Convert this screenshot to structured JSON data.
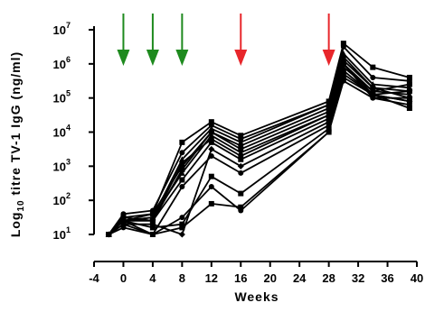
{
  "chart_data": {
    "type": "line",
    "title": "",
    "xlabel": "Weeks",
    "ylabel": "Log10 titre TV-1 IgG (ng/ml)",
    "ylabel_parts": {
      "prefix": "Log",
      "subscript": "10",
      "rest": " titre TV-1 IgG (ng/ml)"
    },
    "xlim": [
      -4,
      40
    ],
    "ylim_log10": [
      1,
      7
    ],
    "y_scale": "log10",
    "x_ticks": [
      -4,
      0,
      4,
      8,
      12,
      16,
      20,
      24,
      28,
      32,
      36,
      40
    ],
    "x_tick_labels": [
      "-4",
      "0",
      "4",
      "8",
      "12",
      "16",
      "20",
      "24",
      "28",
      "32",
      "36",
      "40"
    ],
    "y_tick_exponents": [
      1,
      2,
      3,
      4,
      5,
      6,
      7
    ],
    "y_tick_labels": [
      {
        "base": "10",
        "exp": "1"
      },
      {
        "base": "10",
        "exp": "2"
      },
      {
        "base": "10",
        "exp": "3"
      },
      {
        "base": "10",
        "exp": "4"
      },
      {
        "base": "10",
        "exp": "5"
      },
      {
        "base": "10",
        "exp": "6"
      },
      {
        "base": "10",
        "exp": "7"
      }
    ],
    "grid": false,
    "legend": "none",
    "line_color": "#000000",
    "vaccination_arrows": [
      {
        "week": 0,
        "color": "#1e8a1e"
      },
      {
        "week": 4,
        "color": "#1e8a1e"
      },
      {
        "week": 8,
        "color": "#1e8a1e"
      },
      {
        "week": 16,
        "color": "#e8262b"
      },
      {
        "week": 28,
        "color": "#e8262b"
      }
    ],
    "x": [
      -2,
      0,
      4,
      8,
      12,
      16,
      28,
      30,
      34,
      39
    ],
    "series": [
      {
        "marker": "square",
        "values": [
          1.0,
          1.5,
          1.6,
          3.7,
          4.3,
          3.9,
          4.9,
          6.6,
          5.9,
          5.6
        ]
      },
      {
        "marker": "circle",
        "values": [
          1.0,
          1.6,
          1.7,
          3.4,
          4.2,
          3.8,
          4.8,
          6.5,
          5.6,
          5.5
        ]
      },
      {
        "marker": "triangle",
        "values": [
          1.0,
          1.4,
          1.5,
          3.2,
          4.1,
          3.7,
          4.8,
          6.3,
          5.4,
          5.3
        ]
      },
      {
        "marker": "circle",
        "values": [
          1.0,
          1.4,
          1.6,
          3.0,
          4.0,
          3.6,
          4.7,
          6.2,
          5.3,
          5.2
        ]
      },
      {
        "marker": "square",
        "values": [
          1.0,
          1.5,
          1.4,
          2.9,
          4.0,
          3.5,
          4.6,
          6.0,
          5.2,
          5.4
        ]
      },
      {
        "marker": "triangle",
        "values": [
          1.0,
          1.4,
          1.5,
          2.8,
          3.9,
          3.4,
          4.5,
          5.9,
          5.2,
          5.1
        ]
      },
      {
        "marker": "circle",
        "values": [
          1.0,
          1.5,
          1.4,
          3.1,
          3.8,
          3.3,
          4.5,
          6.1,
          5.3,
          5.0
        ]
      },
      {
        "marker": "square",
        "values": [
          1.0,
          1.4,
          1.4,
          2.6,
          3.7,
          3.2,
          4.4,
          5.8,
          5.1,
          5.2
        ]
      },
      {
        "marker": "diamond",
        "values": [
          1.0,
          1.3,
          1.3,
          1.0,
          3.5,
          3.0,
          4.3,
          5.7,
          5.1,
          4.9
        ]
      },
      {
        "marker": "circle",
        "values": [
          1.0,
          1.2,
          1.0,
          2.4,
          3.3,
          2.8,
          4.2,
          6.0,
          5.0,
          4.8
        ]
      },
      {
        "marker": "square",
        "values": [
          1.0,
          1.4,
          1.2,
          1.3,
          2.7,
          2.2,
          4.1,
          5.6,
          5.1,
          4.7
        ]
      },
      {
        "marker": "circle",
        "values": [
          1.0,
          1.4,
          1.0,
          1.5,
          2.4,
          1.7,
          4.0,
          5.5,
          5.0,
          5.0
        ]
      },
      {
        "marker": "square",
        "values": [
          1.0,
          1.3,
          1.0,
          1.2,
          1.9,
          1.8,
          4.0,
          6.0,
          5.1,
          4.9
        ]
      }
    ]
  }
}
